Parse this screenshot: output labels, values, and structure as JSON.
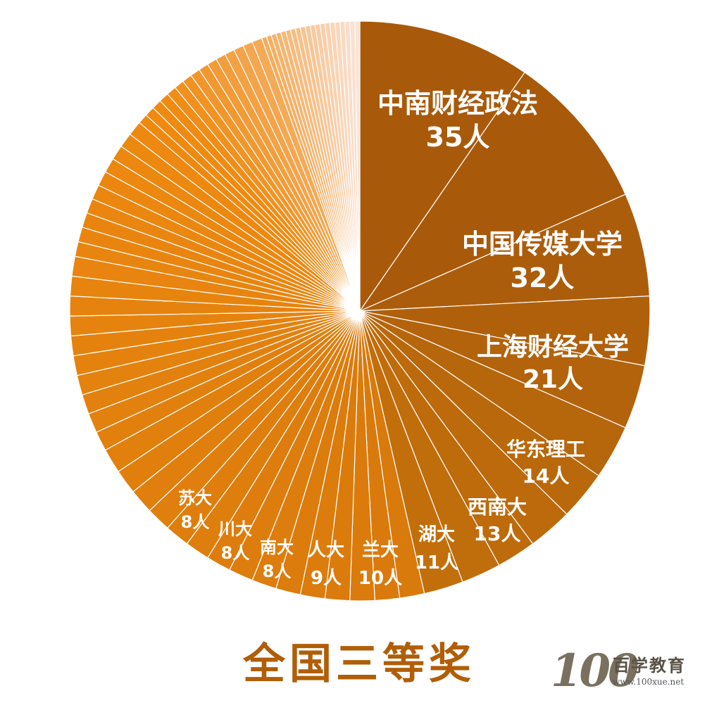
{
  "chart_data": {
    "type": "pie",
    "start": "12 o'clock, clockwise",
    "unit": "人",
    "slices": [
      {
        "name": "中南财经政法",
        "value": 35,
        "label": "35人",
        "color": "#a85a0a"
      },
      {
        "name": "中国传媒大学",
        "value": 32,
        "label": "32人",
        "color": "#a85a0a"
      },
      {
        "name": "上海财经大学",
        "value": 21,
        "label": "21人",
        "color": "#ac5d0b"
      },
      {
        "name": "华东理工",
        "value": 14,
        "label": "14人",
        "color": "#b0600b"
      },
      {
        "name": "西南大",
        "value": 13,
        "label": "13人",
        "color": "#b3630b"
      },
      {
        "name": "湖大",
        "value": 11,
        "label": "11人",
        "color": "#b6660b"
      },
      {
        "name": "兰大",
        "value": 10,
        "label": "10人",
        "color": "#b9680b"
      },
      {
        "name": "人大",
        "value": 9,
        "label": "9人",
        "color": "#bc6a0b"
      },
      {
        "name": "南大",
        "value": 8,
        "label": "8人",
        "color": "#be6b0b"
      },
      {
        "name": "川大",
        "value": 8,
        "label": "8人",
        "color": "#c06d0b"
      },
      {
        "name": "苏大",
        "value": 8,
        "label": "8人",
        "color": "#c26f0b"
      },
      {
        "value": 5
      },
      {
        "value": 5
      },
      {
        "value": 5
      },
      {
        "value": 5
      },
      {
        "value": 5
      },
      {
        "value": 5
      },
      {
        "value": 5
      },
      {
        "value": 5
      },
      {
        "value": 5
      },
      {
        "value": 5
      },
      {
        "value": 5
      },
      {
        "value": 5
      },
      {
        "value": 5
      },
      {
        "value": 5
      },
      {
        "value": 5
      },
      {
        "value": 4
      },
      {
        "value": 4
      },
      {
        "value": 4
      },
      {
        "value": 4
      },
      {
        "value": 4
      },
      {
        "value": 4
      },
      {
        "value": 4
      },
      {
        "value": 4
      },
      {
        "value": 4
      },
      {
        "value": 4
      },
      {
        "value": 3
      },
      {
        "value": 3
      },
      {
        "value": 3
      },
      {
        "value": 3
      },
      {
        "value": 3
      },
      {
        "value": 3
      },
      {
        "value": 3
      },
      {
        "value": 3
      },
      {
        "value": 3
      },
      {
        "value": 3
      },
      {
        "value": 2
      },
      {
        "value": 2
      },
      {
        "value": 2
      },
      {
        "value": 2
      },
      {
        "value": 2
      },
      {
        "value": 2
      },
      {
        "value": 2
      },
      {
        "value": 2
      },
      {
        "value": 2
      },
      {
        "value": 2
      },
      {
        "value": 2
      },
      {
        "value": 2
      },
      {
        "value": 2
      },
      {
        "value": 2
      },
      {
        "value": 2
      },
      {
        "value": 1
      },
      {
        "value": 1
      },
      {
        "value": 1
      },
      {
        "value": 1
      },
      {
        "value": 1
      },
      {
        "value": 1
      },
      {
        "value": 1
      },
      {
        "value": 1
      },
      {
        "value": 1
      },
      {
        "value": 1
      },
      {
        "value": 1
      },
      {
        "value": 1
      },
      {
        "value": 1
      },
      {
        "value": 1
      },
      {
        "value": 1
      },
      {
        "value": 1
      },
      {
        "value": 1
      },
      {
        "value": 1
      },
      {
        "value": 1
      },
      {
        "value": 1
      }
    ],
    "colors": {
      "divider": "#ffffff",
      "tail_start": "#d97a0c",
      "tail_mid": "#f08a10",
      "tail_end": "#fbe3d6"
    }
  },
  "title": "全国三等奖",
  "title_color": "#b05e08",
  "logo": {
    "number": "100",
    "text": "百学教育",
    "url": "www.100xue.net"
  }
}
